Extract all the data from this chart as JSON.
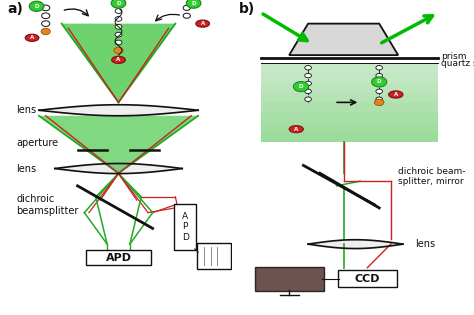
{
  "bg_color": "#ffffff",
  "gc": "#22aa22",
  "gf": "#66cc66",
  "rc": "#cc2222",
  "dk": "#111111",
  "label_a": "a)",
  "label_b": "b)",
  "text_lens_a": "lens",
  "text_aperture": "aperture",
  "text_lens2": "lens",
  "text_dichroic_a": "dichroic\nbeamsplitter",
  "text_apd_box": "APD",
  "text_apd_side": "A\nP\nD",
  "text_prism": "prism",
  "text_quartz": "quartz slide",
  "text_dichroic_b": "dichroic beam-\nsplitter, mirror",
  "text_lens_b": "lens",
  "text_ccd": "CCD",
  "green_arr": "#00bb00",
  "ev_green": "#99dd99"
}
